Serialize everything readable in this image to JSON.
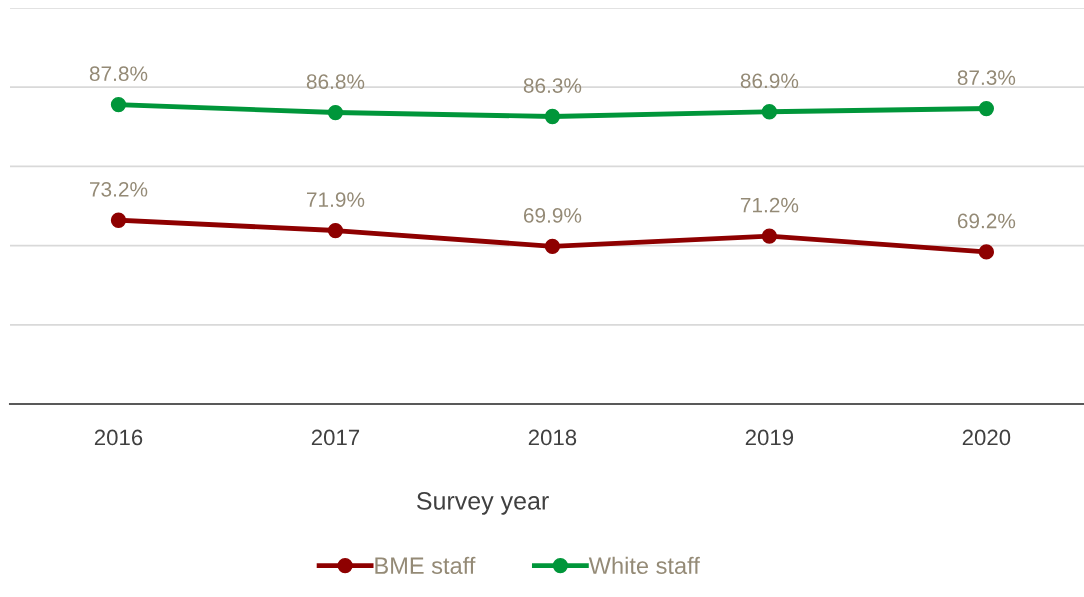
{
  "chart_data": {
    "type": "line",
    "xlabel": "Survey year",
    "categories": [
      "2016",
      "2017",
      "2018",
      "2019",
      "2020"
    ],
    "series": [
      {
        "name": "BME staff",
        "color": "#8e0000",
        "values": [
          73.2,
          71.9,
          69.9,
          71.2,
          69.2
        ],
        "value_labels": [
          "73.2%",
          "71.9%",
          "69.9%",
          "71.2%",
          "69.2%"
        ]
      },
      {
        "name": "White staff",
        "color": "#00963a",
        "values": [
          87.8,
          86.8,
          86.3,
          86.9,
          87.3
        ],
        "value_labels": [
          "87.8%",
          "86.8%",
          "86.3%",
          "86.9%",
          "87.3%"
        ]
      }
    ],
    "ylim": [
      50,
      100
    ],
    "yticks": [
      {
        "value": 60,
        "label": null
      },
      {
        "value": 70,
        "label": null
      },
      {
        "value": 80,
        "label": null
      },
      {
        "value": 90,
        "label": null
      },
      {
        "value": 100,
        "label": null
      }
    ],
    "grid": "y",
    "legend": "bottom",
    "marker": "circle",
    "line_style": "solid",
    "tick_labels": "x"
  }
}
